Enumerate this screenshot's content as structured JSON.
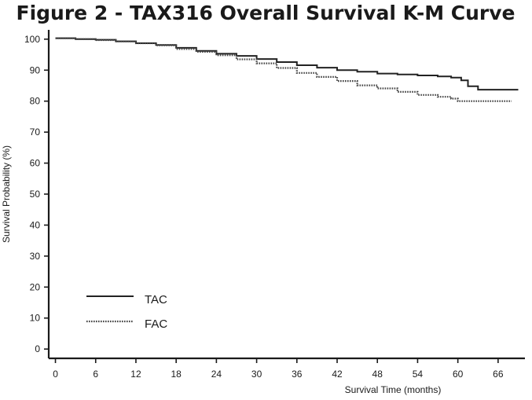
{
  "chart_data": {
    "type": "line",
    "title": "Figure 2 - TAX316 Overall Survival K-M Curve",
    "xlabel": "Survival Time (months)",
    "ylabel": "Survival Probability (%)",
    "xlim": [
      -1,
      70
    ],
    "ylim": [
      -3,
      103
    ],
    "x_ticks": [
      0,
      6,
      12,
      18,
      24,
      30,
      36,
      42,
      48,
      54,
      60,
      66
    ],
    "y_ticks": [
      0,
      10,
      20,
      30,
      40,
      50,
      60,
      70,
      80,
      90,
      100
    ],
    "grid": false,
    "legend": {
      "position": "bottom-left"
    },
    "series": [
      {
        "name": "TAC",
        "line_style": "solid",
        "color": "#222222",
        "points": [
          [
            0,
            100.3
          ],
          [
            3,
            100
          ],
          [
            6,
            99.8
          ],
          [
            9,
            99.3
          ],
          [
            12,
            98.7
          ],
          [
            15,
            98.1
          ],
          [
            18,
            97.2
          ],
          [
            21,
            96.2
          ],
          [
            24,
            95.3
          ],
          [
            27,
            94.6
          ],
          [
            30,
            93.6
          ],
          [
            33,
            92.6
          ],
          [
            36,
            91.6
          ],
          [
            39,
            90.8
          ],
          [
            42,
            90.0
          ],
          [
            45,
            89.5
          ],
          [
            48,
            88.9
          ],
          [
            51,
            88.6
          ],
          [
            54,
            88.3
          ],
          [
            57,
            88.0
          ],
          [
            59,
            87.6
          ],
          [
            60.5,
            86.7
          ],
          [
            61.5,
            84.8
          ],
          [
            63,
            83.7
          ],
          [
            66,
            83.7
          ],
          [
            69,
            83.7
          ]
        ]
      },
      {
        "name": "FAC",
        "line_style": "dotted",
        "color": "#444444",
        "points": [
          [
            0,
            100.3
          ],
          [
            3,
            100
          ],
          [
            6,
            99.7
          ],
          [
            9,
            99.3
          ],
          [
            12,
            98.7
          ],
          [
            15,
            98.0
          ],
          [
            18,
            96.8
          ],
          [
            21,
            95.9
          ],
          [
            24,
            94.8
          ],
          [
            27,
            93.5
          ],
          [
            30,
            92.2
          ],
          [
            33,
            90.7
          ],
          [
            36,
            89.1
          ],
          [
            39,
            87.8
          ],
          [
            42,
            86.5
          ],
          [
            45,
            85.1
          ],
          [
            48,
            84.1
          ],
          [
            51,
            83.0
          ],
          [
            54,
            82.0
          ],
          [
            57,
            81.4
          ],
          [
            59,
            80.8
          ],
          [
            60,
            80.0
          ],
          [
            63,
            80.0
          ],
          [
            66,
            80.0
          ],
          [
            68,
            80.0
          ]
        ]
      }
    ]
  }
}
